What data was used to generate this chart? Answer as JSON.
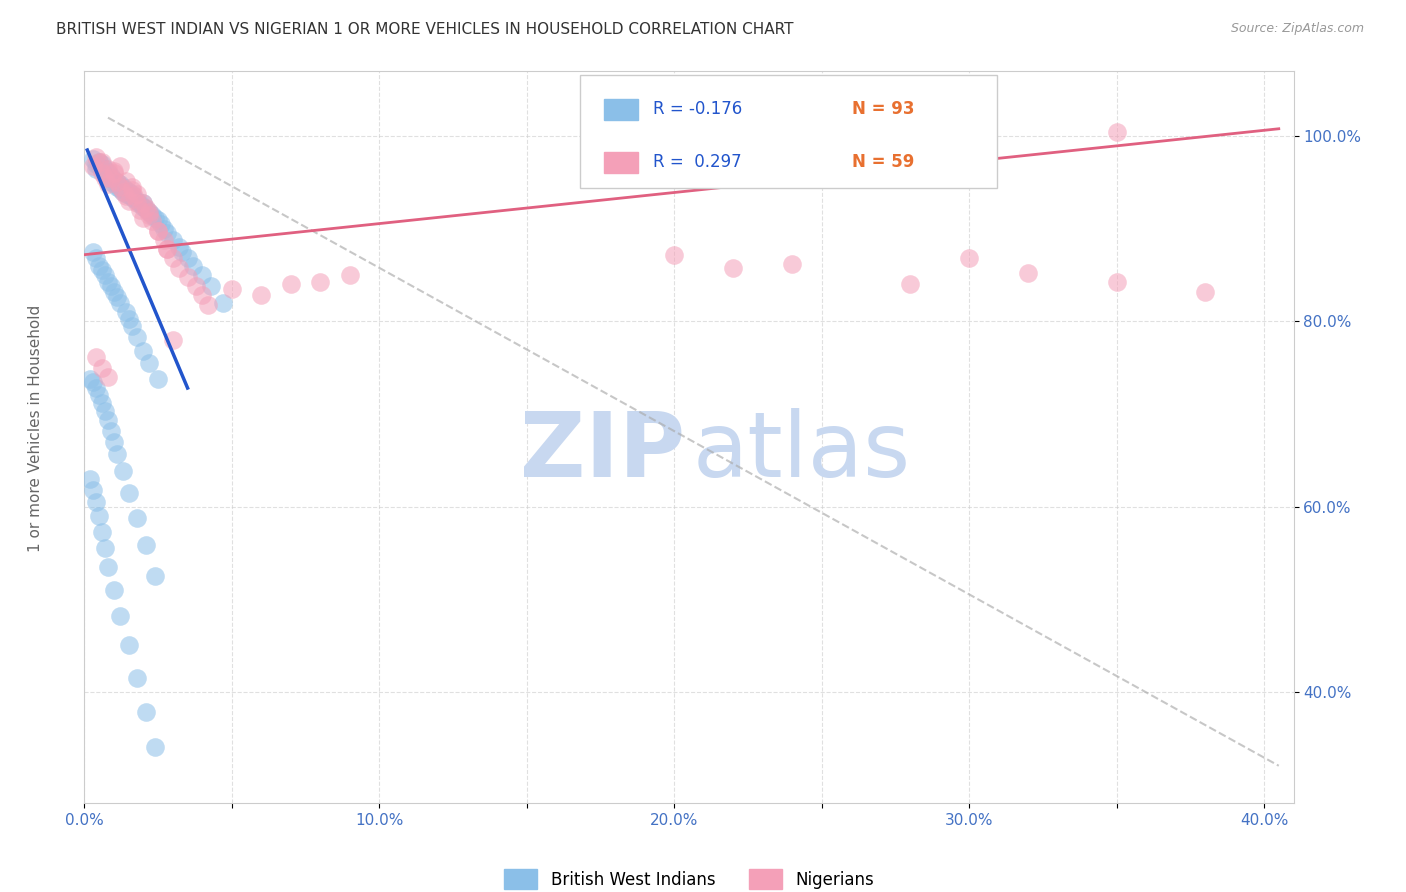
{
  "title": "BRITISH WEST INDIAN VS NIGERIAN 1 OR MORE VEHICLES IN HOUSEHOLD CORRELATION CHART",
  "source": "Source: ZipAtlas.com",
  "ylabel": "1 or more Vehicles in Household",
  "xlim": [
    0.0,
    0.41
  ],
  "ylim": [
    0.28,
    1.07
  ],
  "color_blue": "#8bbfe8",
  "color_pink": "#f4a0b8",
  "color_blue_line": "#2255cc",
  "color_pink_line": "#e06080",
  "color_diag": "#aaaaaa",
  "watermark_color": "#c8d8f0",
  "tick_color": "#4472c4",
  "grid_color": "#cccccc",
  "title_color": "#333333",
  "title_fontsize": 11,
  "legend_r1_val": "R = -0.176",
  "legend_n1_val": "N = 93",
  "legend_r2_val": "R =  0.297",
  "legend_n2_val": "N = 59",
  "blue_x": [
    0.003,
    0.004,
    0.004,
    0.005,
    0.005,
    0.006,
    0.006,
    0.007,
    0.007,
    0.008,
    0.008,
    0.009,
    0.009,
    0.01,
    0.01,
    0.011,
    0.011,
    0.012,
    0.012,
    0.013,
    0.013,
    0.014,
    0.014,
    0.015,
    0.015,
    0.016,
    0.016,
    0.017,
    0.018,
    0.019,
    0.02,
    0.02,
    0.021,
    0.022,
    0.023,
    0.024,
    0.025,
    0.026,
    0.027,
    0.028,
    0.03,
    0.032,
    0.033,
    0.035,
    0.037,
    0.04,
    0.043,
    0.047,
    0.003,
    0.004,
    0.005,
    0.006,
    0.007,
    0.008,
    0.009,
    0.01,
    0.011,
    0.012,
    0.014,
    0.015,
    0.016,
    0.018,
    0.02,
    0.022,
    0.025,
    0.002,
    0.003,
    0.004,
    0.005,
    0.006,
    0.007,
    0.008,
    0.009,
    0.01,
    0.011,
    0.013,
    0.015,
    0.018,
    0.021,
    0.024,
    0.002,
    0.003,
    0.004,
    0.005,
    0.006,
    0.007,
    0.008,
    0.01,
    0.012,
    0.015,
    0.018,
    0.021,
    0.024
  ],
  "blue_y": [
    0.975,
    0.97,
    0.965,
    0.968,
    0.972,
    0.963,
    0.97,
    0.958,
    0.965,
    0.955,
    0.961,
    0.95,
    0.957,
    0.948,
    0.953,
    0.945,
    0.95,
    0.943,
    0.948,
    0.94,
    0.945,
    0.938,
    0.942,
    0.936,
    0.94,
    0.934,
    0.938,
    0.932,
    0.93,
    0.927,
    0.924,
    0.928,
    0.921,
    0.918,
    0.915,
    0.912,
    0.909,
    0.905,
    0.9,
    0.895,
    0.888,
    0.88,
    0.875,
    0.868,
    0.86,
    0.85,
    0.838,
    0.82,
    0.875,
    0.868,
    0.86,
    0.855,
    0.85,
    0.843,
    0.838,
    0.832,
    0.826,
    0.82,
    0.81,
    0.803,
    0.795,
    0.783,
    0.768,
    0.755,
    0.738,
    0.738,
    0.735,
    0.728,
    0.72,
    0.712,
    0.703,
    0.693,
    0.682,
    0.67,
    0.657,
    0.638,
    0.615,
    0.588,
    0.558,
    0.525,
    0.63,
    0.618,
    0.605,
    0.59,
    0.573,
    0.555,
    0.535,
    0.51,
    0.482,
    0.45,
    0.415,
    0.378,
    0.34
  ],
  "pink_x": [
    0.003,
    0.005,
    0.006,
    0.007,
    0.008,
    0.009,
    0.01,
    0.011,
    0.012,
    0.013,
    0.014,
    0.015,
    0.016,
    0.017,
    0.018,
    0.019,
    0.02,
    0.021,
    0.022,
    0.023,
    0.025,
    0.027,
    0.028,
    0.03,
    0.032,
    0.035,
    0.038,
    0.04,
    0.042,
    0.05,
    0.06,
    0.07,
    0.08,
    0.09,
    0.004,
    0.006,
    0.008,
    0.01,
    0.012,
    0.014,
    0.016,
    0.018,
    0.02,
    0.022,
    0.025,
    0.028,
    0.03,
    0.2,
    0.22,
    0.24,
    0.32,
    0.35,
    0.38,
    0.004,
    0.006,
    0.008,
    0.35,
    0.3,
    0.28
  ],
  "pink_y": [
    0.968,
    0.972,
    0.96,
    0.955,
    0.948,
    0.955,
    0.962,
    0.95,
    0.945,
    0.94,
    0.935,
    0.93,
    0.942,
    0.935,
    0.928,
    0.92,
    0.912,
    0.922,
    0.915,
    0.908,
    0.898,
    0.888,
    0.878,
    0.868,
    0.858,
    0.848,
    0.838,
    0.828,
    0.818,
    0.835,
    0.828,
    0.84,
    0.842,
    0.85,
    0.978,
    0.972,
    0.965,
    0.96,
    0.968,
    0.952,
    0.945,
    0.938,
    0.928,
    0.918,
    0.898,
    0.878,
    0.78,
    0.872,
    0.858,
    0.862,
    0.852,
    0.842,
    0.832,
    0.762,
    0.75,
    0.74,
    1.005,
    0.868,
    0.84
  ]
}
